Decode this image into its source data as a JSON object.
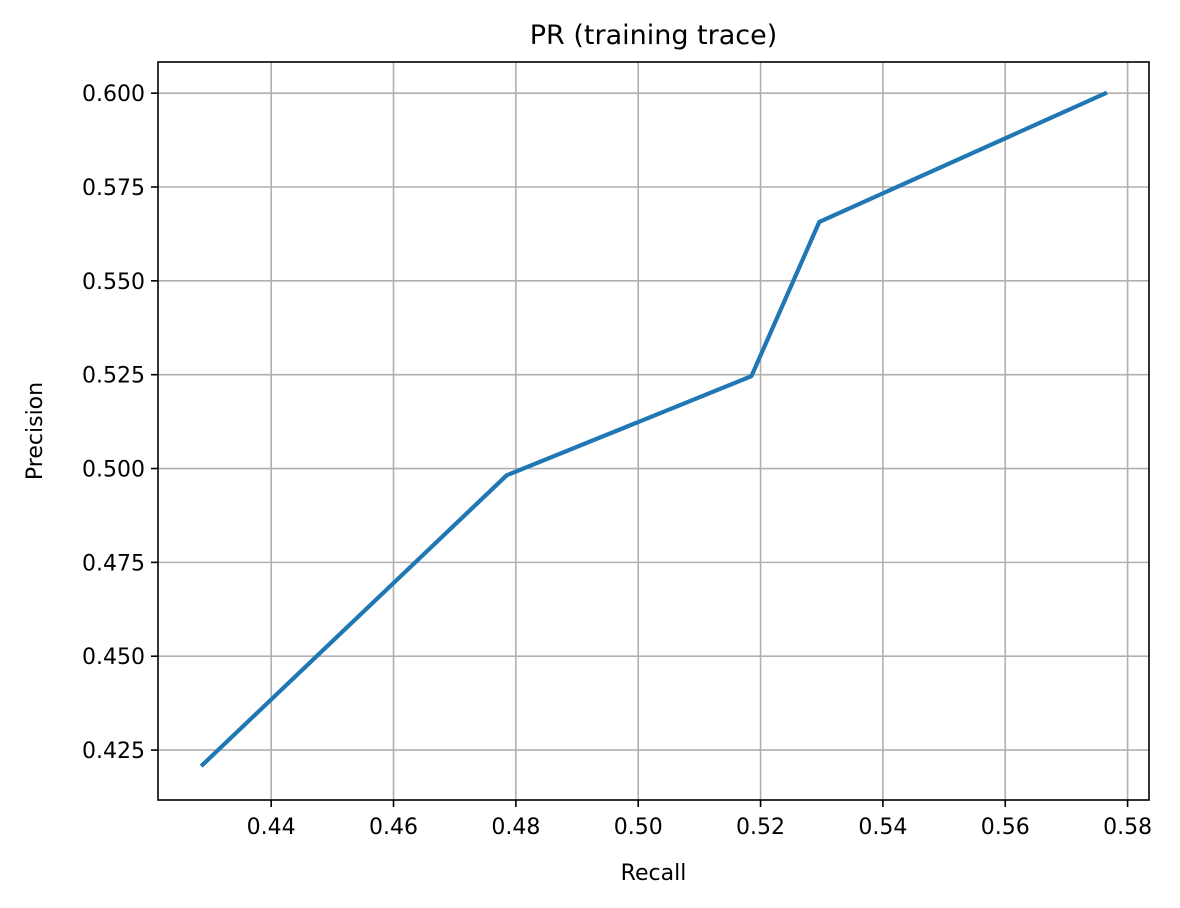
{
  "chart_data": {
    "type": "line",
    "title": "PR (training trace)",
    "xlabel": "Recall",
    "ylabel": "Precision",
    "xlim": [
      0.4215,
      0.5835
    ],
    "ylim": [
      0.4117,
      0.6083
    ],
    "xticks": [
      0.44,
      0.46,
      0.48,
      0.5,
      0.52,
      0.54,
      0.56,
      0.58
    ],
    "xtick_labels": [
      "0.44",
      "0.46",
      "0.48",
      "0.50",
      "0.52",
      "0.54",
      "0.56",
      "0.58"
    ],
    "yticks": [
      0.425,
      0.45,
      0.475,
      0.5,
      0.525,
      0.55,
      0.575,
      0.6
    ],
    "ytick_labels": [
      "0.425",
      "0.450",
      "0.475",
      "0.500",
      "0.525",
      "0.550",
      "0.575",
      "0.600"
    ],
    "grid": true,
    "series": [
      {
        "color": "#1f77b4",
        "x": [
          0.4288,
          0.4785,
          0.5185,
          0.5296,
          0.5763
        ],
        "y": [
          0.4211,
          0.4982,
          0.5246,
          0.5657,
          0.5999
        ]
      }
    ]
  }
}
